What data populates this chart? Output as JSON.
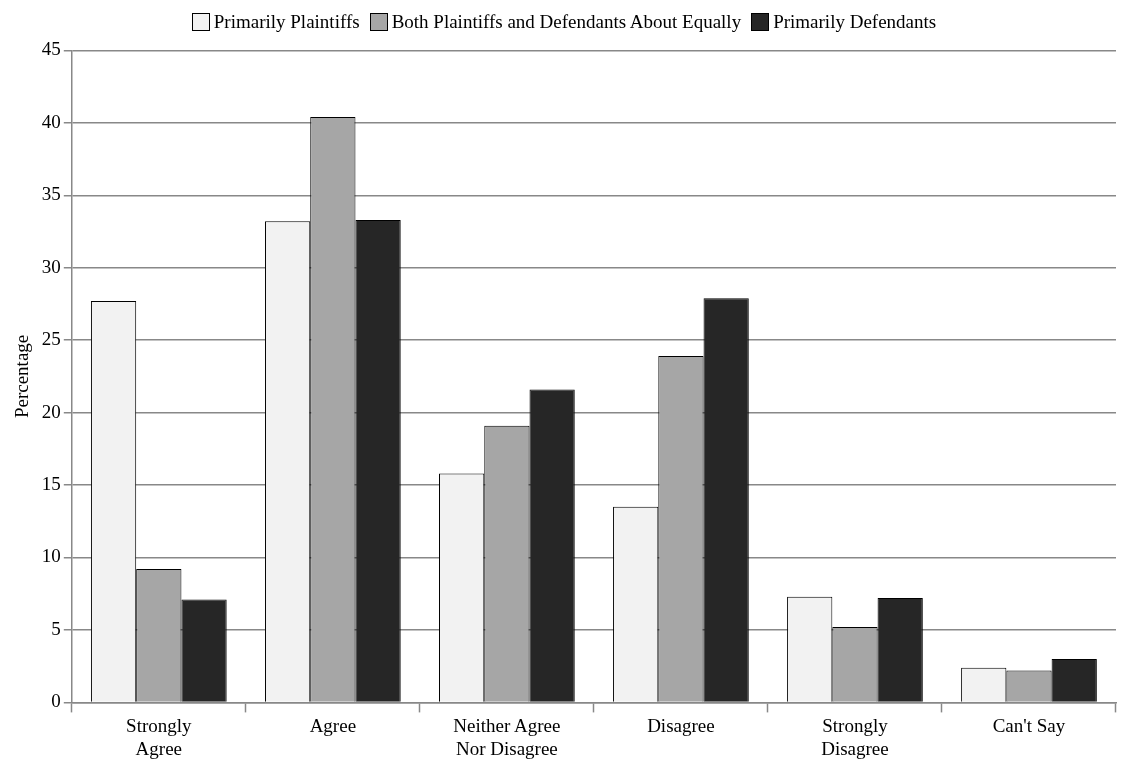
{
  "chart_data": {
    "type": "bar",
    "ylabel": "Percentage",
    "categories": [
      "Strongly Agree",
      "Agree",
      "Neither Agree Nor Disagree",
      "Disagree",
      "Strongly Disagree",
      "Can't Say"
    ],
    "series": [
      {
        "name": "Primarily Plaintiffs",
        "color": "#f2f2f2",
        "values": [
          27.7,
          33.2,
          15.8,
          13.5,
          7.3,
          2.4
        ]
      },
      {
        "name": "Both Plaintiffs and Defendants About Equally",
        "color": "#a6a6a6",
        "values": [
          9.2,
          40.4,
          19.1,
          23.9,
          5.2,
          2.2
        ]
      },
      {
        "name": "Primarily Defendants",
        "color": "#262626",
        "values": [
          7.1,
          33.3,
          21.6,
          27.9,
          7.2,
          3.0
        ]
      }
    ],
    "ylim": [
      0,
      45
    ],
    "yticks": [
      0,
      5,
      10,
      15,
      20,
      25,
      30,
      35,
      40,
      45
    ],
    "grid": "y",
    "legend": "top"
  }
}
